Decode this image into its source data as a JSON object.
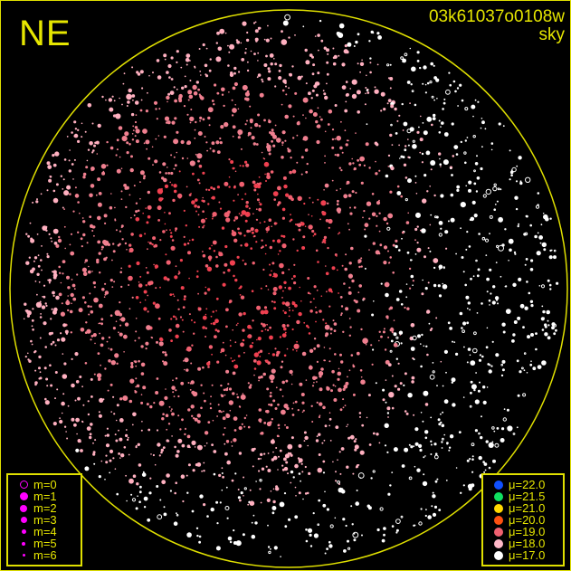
{
  "header": {
    "direction": "NE",
    "exposure_id": "03k61037o0108w",
    "mode": "sky"
  },
  "colors": {
    "frame": "#e0e000",
    "text": "#e6e600",
    "magnitude_symbol": "#ff00ff"
  },
  "magnitude_legend": [
    {
      "label": "m=0",
      "style": "ring"
    },
    {
      "label": "m=1"
    },
    {
      "label": "m=2"
    },
    {
      "label": "m=3"
    },
    {
      "label": "m=4"
    },
    {
      "label": "m=5"
    },
    {
      "label": "m=6"
    }
  ],
  "brightness_legend": [
    {
      "label": "μ=22.0",
      "color": "#1050ff"
    },
    {
      "label": "μ=21.5",
      "color": "#10e060"
    },
    {
      "label": "μ=21.0",
      "color": "#ffd800"
    },
    {
      "label": "μ=20.0",
      "color": "#ff5010"
    },
    {
      "label": "μ=19.0",
      "color": "#f06070"
    },
    {
      "label": "μ=18.0",
      "color": "#ffb8c8"
    },
    {
      "label": "μ=17.0",
      "color": "#ffffff"
    }
  ]
}
